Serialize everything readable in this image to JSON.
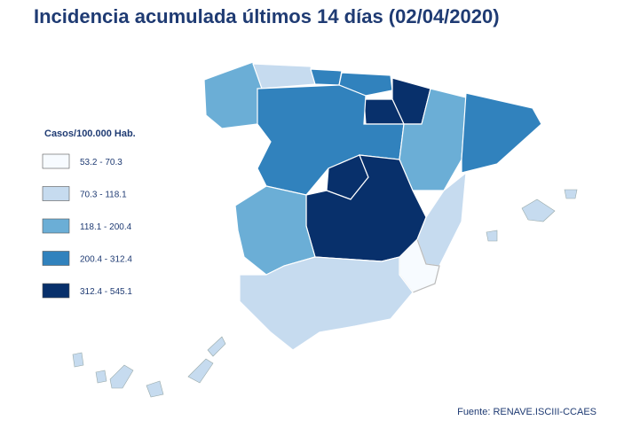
{
  "header": {
    "title": "Incidencia acumulada últimos 14 días (02/04/2020)"
  },
  "legend": {
    "title": "Casos/100.000 Hab.",
    "items": [
      {
        "label": "53.2 - 70.3",
        "color": "#f7fbff"
      },
      {
        "label": "70.3 - 118.1",
        "color": "#c6dbef"
      },
      {
        "label": "118.1 - 200.4",
        "color": "#6baed6"
      },
      {
        "label": "200.4 - 312.4",
        "color": "#3182bd"
      },
      {
        "label": "312.4 - 545.1",
        "color": "#08306b"
      }
    ]
  },
  "source": "Fuente: RENAVE.ISCIII-CCAES"
}
